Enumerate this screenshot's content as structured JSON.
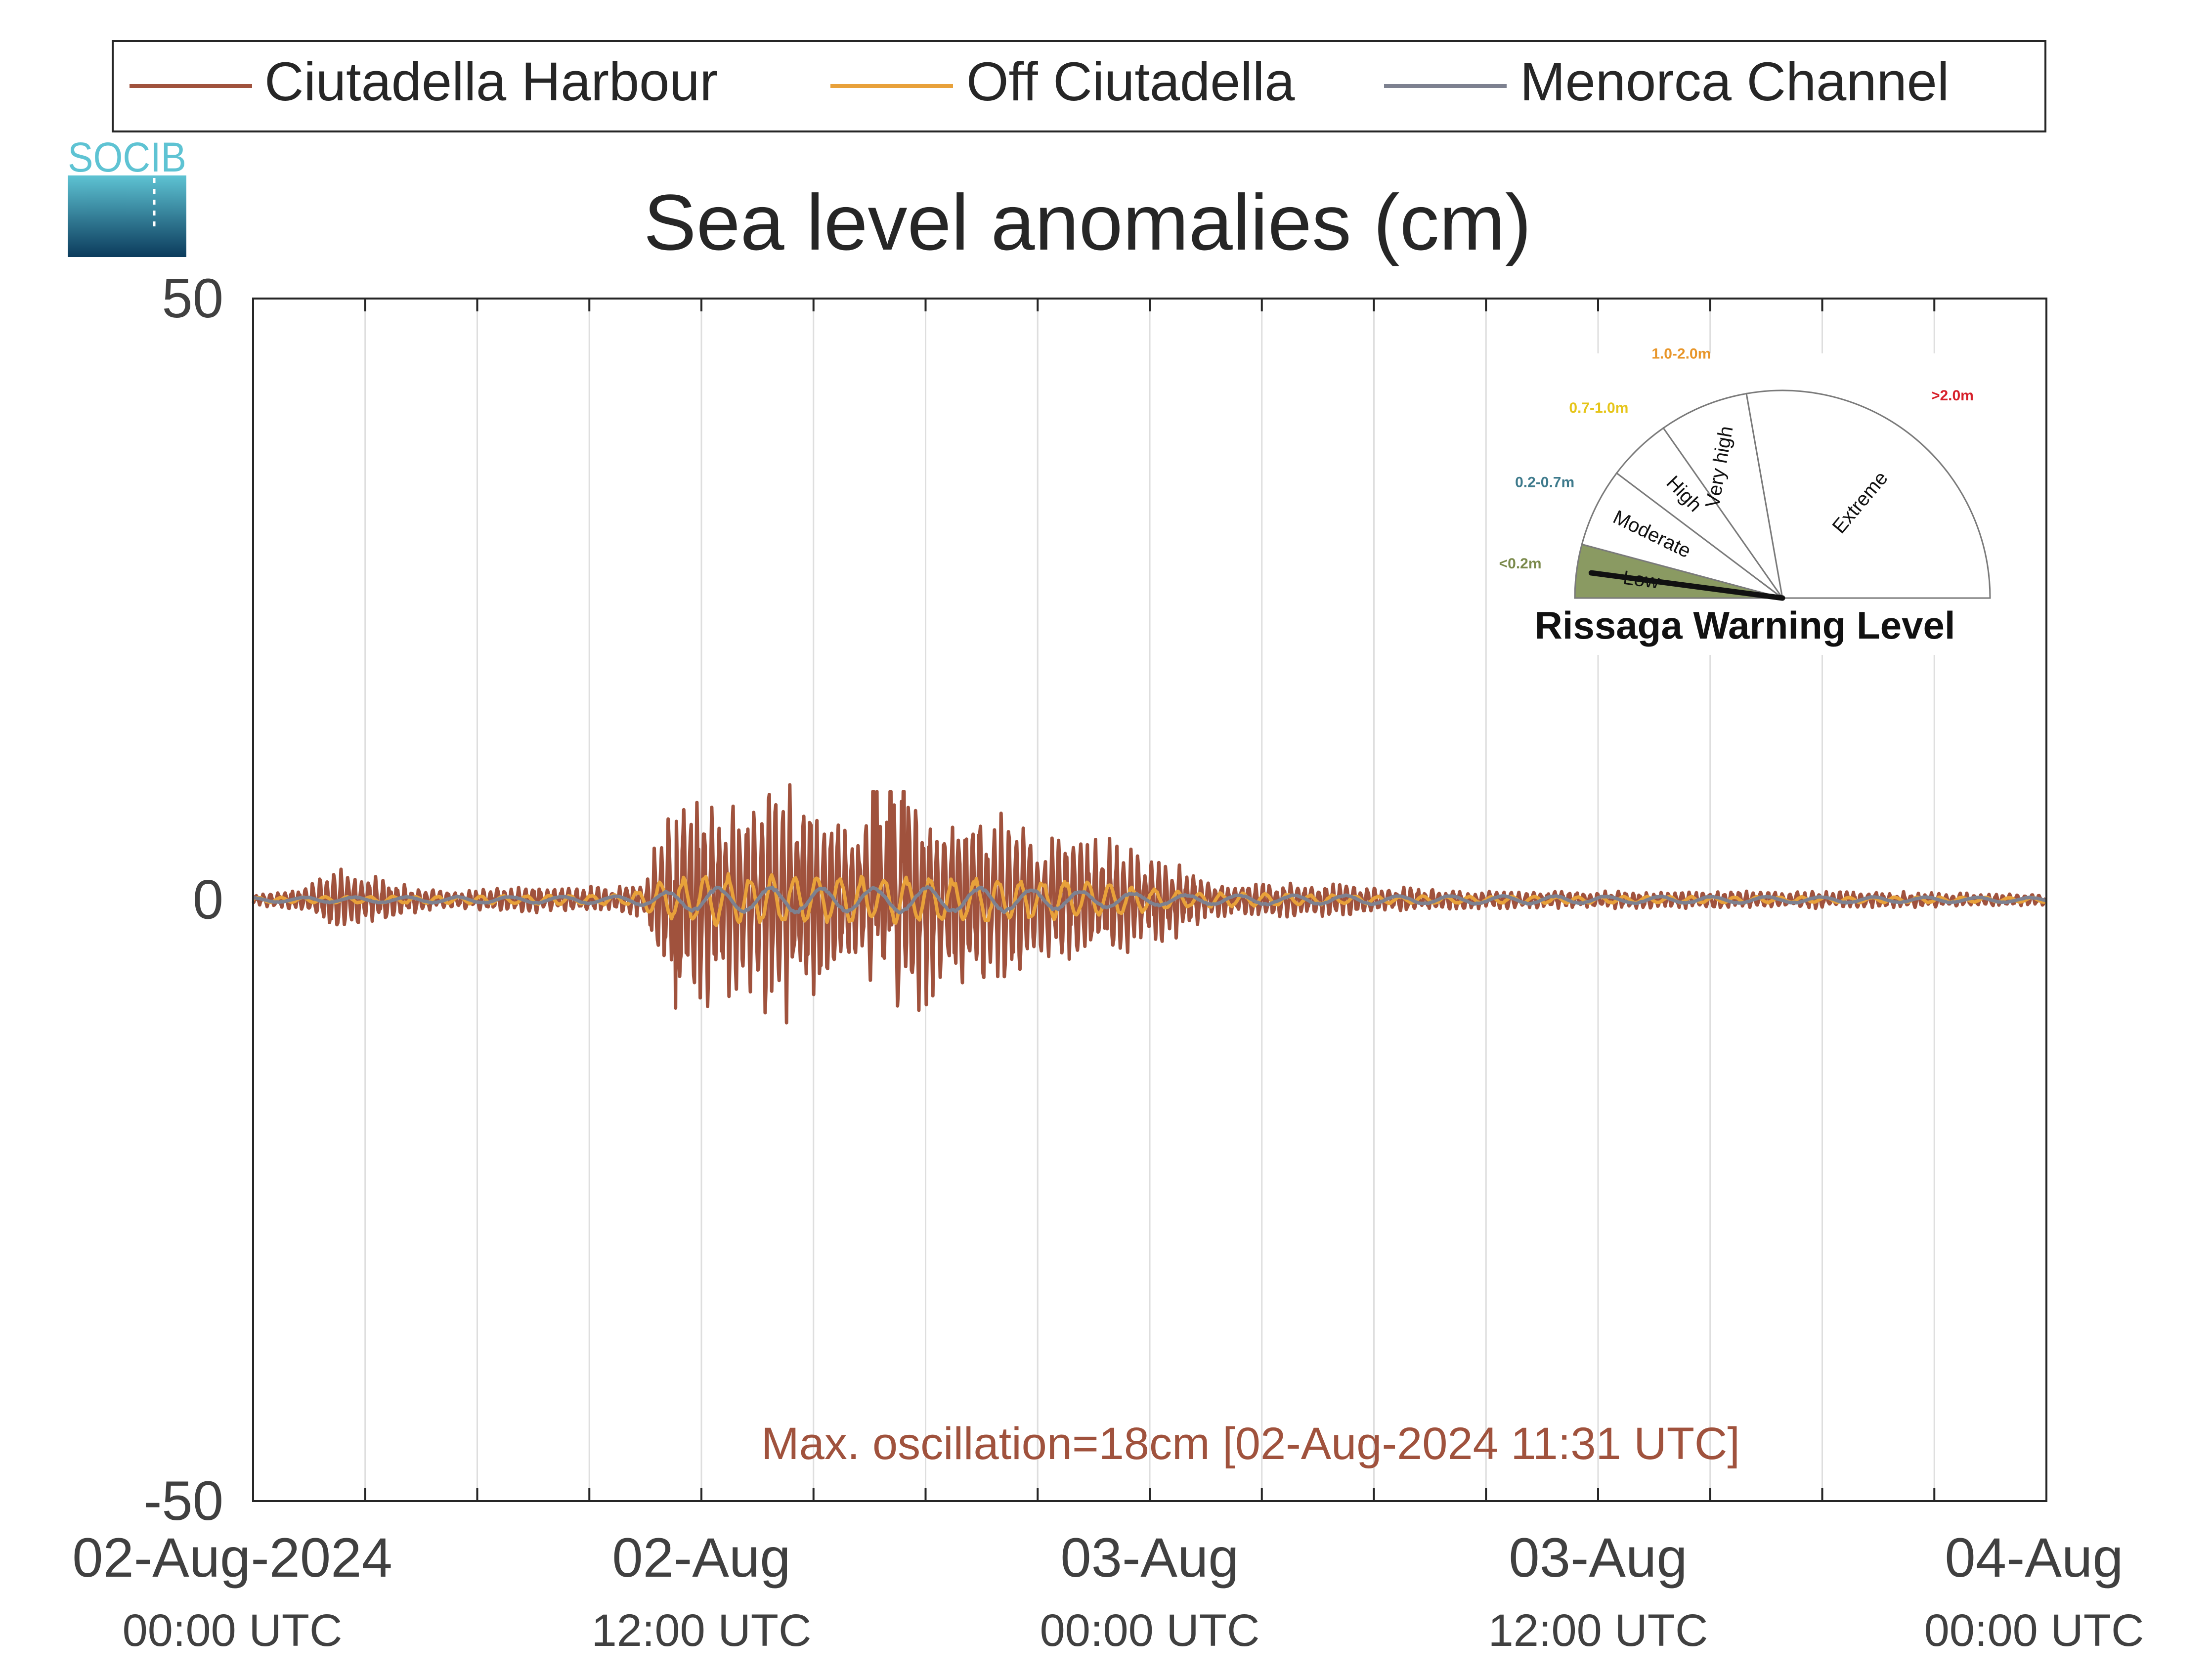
{
  "chart_data": {
    "type": "line",
    "title": "Sea level anomalies (cm)",
    "ylabel": "",
    "xlabel": "",
    "ylim": [
      -50,
      50
    ],
    "yticks": [
      -50,
      0,
      50
    ],
    "xlim": [
      "2024-08-02 00:00",
      "2024-08-04 00:00"
    ],
    "grid": "vertical",
    "legend_position": "top",
    "x_ticks": [
      {
        "date": "02-Aug-2024",
        "time": "00:00 UTC",
        "hours": 0
      },
      {
        "date": "02-Aug",
        "time": "12:00 UTC",
        "hours": 12
      },
      {
        "date": "03-Aug",
        "time": "00:00 UTC",
        "hours": 24
      },
      {
        "date": "03-Aug",
        "time": "12:00 UTC",
        "hours": 36
      },
      {
        "date": "04-Aug",
        "time": "00:00 UTC",
        "hours": 48
      }
    ],
    "series": [
      {
        "name": "Ciutadella Harbour",
        "color": "#a0523d",
        "hours_start": 0.0,
        "hours_end": 48.0,
        "envelope_cm": [
          [
            0.0,
            0.3
          ],
          [
            1.5,
            1.0
          ],
          [
            2.0,
            2.3
          ],
          [
            3.5,
            1.5
          ],
          [
            5.0,
            0.6
          ],
          [
            6.5,
            0.8
          ],
          [
            8.0,
            1.0
          ],
          [
            9.5,
            0.9
          ],
          [
            10.5,
            1.2
          ],
          [
            10.8,
            4.5
          ],
          [
            11.3,
            7.0
          ],
          [
            11.5,
            9.0
          ],
          [
            12.5,
            7.0
          ],
          [
            13.5,
            7.5
          ],
          [
            14.5,
            9.0
          ],
          [
            15.5,
            6.5
          ],
          [
            16.5,
            6.0
          ],
          [
            17.5,
            8.5
          ],
          [
            18.5,
            6.5
          ],
          [
            19.5,
            6.5
          ],
          [
            20.5,
            5.5
          ],
          [
            21.5,
            4.5
          ],
          [
            22.5,
            4.5
          ],
          [
            24.5,
            3.0
          ],
          [
            25.5,
            1.3
          ],
          [
            27.0,
            1.2
          ],
          [
            28.5,
            1.2
          ],
          [
            30.5,
            0.9
          ],
          [
            33.0,
            0.6
          ],
          [
            36.0,
            0.6
          ],
          [
            39.0,
            0.6
          ],
          [
            43.0,
            0.6
          ],
          [
            48.0,
            0.4
          ]
        ],
        "max_cm": 9.0,
        "min_cm": -9.5
      },
      {
        "name": "Off Ciutadella",
        "color": "#e8a13a",
        "hours_start": 0.0,
        "hours_end": 48.0,
        "envelope_cm": [
          [
            0.0,
            0.2
          ],
          [
            10.0,
            0.4
          ],
          [
            11.0,
            1.5
          ],
          [
            12.0,
            2.0
          ],
          [
            17.0,
            1.8
          ],
          [
            22.0,
            1.6
          ],
          [
            25.0,
            0.6
          ],
          [
            30.0,
            0.3
          ],
          [
            48.0,
            0.2
          ]
        ]
      },
      {
        "name": "Menorca Channel",
        "color": "#7d8190",
        "hours_start": 0.0,
        "hours_end": 48.0,
        "envelope_cm": [
          [
            0.0,
            0.2
          ],
          [
            10.0,
            0.3
          ],
          [
            12.0,
            1.0
          ],
          [
            20.0,
            1.0
          ],
          [
            25.0,
            0.4
          ],
          [
            48.0,
            0.2
          ]
        ]
      }
    ],
    "annotation": "Max. oscillation=18cm [02-Aug-2024 11:31 UTC]",
    "annotation_color": "#a0523d"
  },
  "logo": {
    "text": "SOCIB",
    "top_color": "#5ec3d3",
    "bottom_color": "#0b3b5c"
  },
  "gauge": {
    "title": "Rissaga Warning Level",
    "current_level": "Low",
    "current_fraction_of_low_sector": 0.5,
    "sectors": [
      {
        "label": "Low",
        "range": "<0.2m",
        "range_color": "#7b8a4c",
        "fill": "#8a9a62",
        "active": true
      },
      {
        "label": "Moderate",
        "range": "0.2-0.7m",
        "range_color": "#3e7a8c",
        "fill": "#ffffff",
        "active": false
      },
      {
        "label": "High",
        "range": "0.7-1.0m",
        "range_color": "#e6c51a",
        "fill": "#ffffff",
        "active": false
      },
      {
        "label": "Very high",
        "range": "1.0-2.0m",
        "range_color": "#e8962a",
        "fill": "#ffffff",
        "active": false
      },
      {
        "label": "Extreme",
        "range": ">2.0m",
        "range_color": "#d7202a",
        "fill": "#ffffff",
        "active": false
      }
    ]
  }
}
